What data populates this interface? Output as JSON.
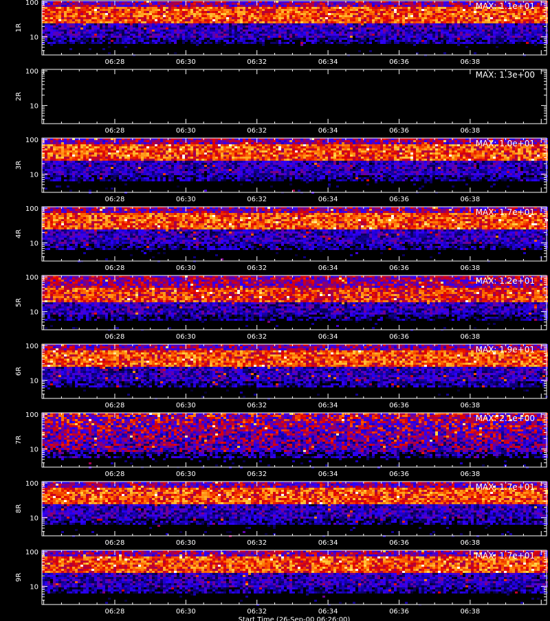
{
  "chart_data": {
    "type": "heatmap",
    "panels": [
      {
        "ylabel": "1R",
        "max_label": "MAX: 1.1e+01",
        "band": "strong",
        "seed": 11
      },
      {
        "ylabel": "2R",
        "max_label": "MAX: 1.3e+00",
        "band": "empty",
        "seed": 22
      },
      {
        "ylabel": "3R",
        "max_label": "MAX: 1.0e+01",
        "band": "strong",
        "seed": 33
      },
      {
        "ylabel": "4R",
        "max_label": "MAX: 1.7e+01",
        "band": "strong",
        "seed": 44
      },
      {
        "ylabel": "5R",
        "max_label": "MAX: 1.2e+01",
        "band": "medium",
        "seed": 55
      },
      {
        "ylabel": "6R",
        "max_label": "MAX: 1.9e+01",
        "band": "strong",
        "seed": 66
      },
      {
        "ylabel": "7R",
        "max_label": "MAX: 2.1e+00",
        "band": "noisy",
        "seed": 77
      },
      {
        "ylabel": "8R",
        "max_label": "MAX: 1.7e+01",
        "band": "strong",
        "seed": 88
      },
      {
        "ylabel": "9R",
        "max_label": "MAX: 1.7e+01",
        "band": "strong",
        "seed": 99
      }
    ],
    "x_ticks": [
      "06:28",
      "06:30",
      "06:32",
      "06:34",
      "06:36",
      "06:38"
    ],
    "x_tick_minutes": [
      28,
      30,
      32,
      34,
      36,
      38
    ],
    "xlim_minutes": [
      25.95,
      40.15
    ],
    "y_ticks": [
      "10",
      "100"
    ],
    "y_tick_values": [
      10,
      100
    ],
    "ylim": [
      3,
      110
    ],
    "y_scale": "log",
    "colormap": [
      "#000000",
      "#10008c",
      "#2a00ff",
      "#7f007f",
      "#e00000",
      "#ff7000",
      "#ffd040",
      "#ffffff"
    ],
    "xlabel": "Start Time (26-Sep-00 06:26:00)"
  }
}
